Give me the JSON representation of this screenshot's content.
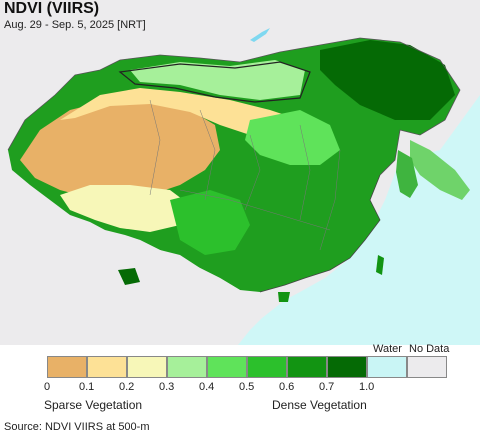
{
  "header": {
    "title": "NDVI (VIIRS)",
    "subtitle": "Aug. 29 - Sep. 5, 2025 [NRT]"
  },
  "legend": {
    "bins": [
      {
        "color": "#e8b167"
      },
      {
        "color": "#fde196"
      },
      {
        "color": "#f7f7b8"
      },
      {
        "color": "#a6f09a"
      },
      {
        "color": "#5fe35a"
      },
      {
        "color": "#2cc02c"
      },
      {
        "color": "#129412"
      },
      {
        "color": "#056a05"
      },
      {
        "color": "#c9f5f5"
      },
      {
        "color": "#ecebed"
      }
    ],
    "ticks": [
      "0",
      "0.1",
      "0.2",
      "0.3",
      "0.4",
      "0.5",
      "0.6",
      "0.7",
      "1.0"
    ],
    "water_label": "Water",
    "nodata_label": "No Data",
    "sparse_label": "Sparse Vegetation",
    "dense_label": "Dense Vegetation"
  },
  "footer": {
    "source": "Source: NDVI VIIRS at 500-m"
  },
  "colors": {
    "ocean": "#cff7f7",
    "land_outside": "#ecebed",
    "boundary": "#555555"
  }
}
